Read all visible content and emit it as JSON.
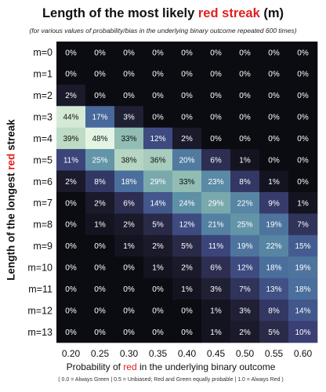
{
  "chart_data": {
    "type": "heatmap",
    "title": {
      "prefix": "Length of the most likely ",
      "highlight": "red streak",
      "suffix": " (m)"
    },
    "subtitle": "(for various values of probability/bias in the underlying binary outcome repeated 600 times)",
    "xlabel": {
      "prefix": "Probability of ",
      "highlight": "red",
      "suffix": " in the underlying binary outcome"
    },
    "xnote": "( 0.0 = Always Green | 0.5 = Unbiased; Red and Green equally probable | 1.0 = Always Red )",
    "ylabel": {
      "prefix": "Length of the longest ",
      "highlight": "red",
      "suffix": " streak"
    },
    "x": [
      "0.20",
      "0.25",
      "0.30",
      "0.35",
      "0.40",
      "0.45",
      "0.50",
      "0.55",
      "0.60"
    ],
    "y": [
      "m=0",
      "m=1",
      "m=2",
      "m=3",
      "m=4",
      "m=5",
      "m=6",
      "m=7",
      "m=8",
      "m=9",
      "m=10",
      "m=11",
      "m=12",
      "m=13"
    ],
    "values": [
      [
        0,
        0,
        0,
        0,
        0,
        0,
        0,
        0,
        0
      ],
      [
        0,
        0,
        0,
        0,
        0,
        0,
        0,
        0,
        0
      ],
      [
        2,
        0,
        0,
        0,
        0,
        0,
        0,
        0,
        0
      ],
      [
        44,
        17,
        3,
        0,
        0,
        0,
        0,
        0,
        0
      ],
      [
        39,
        48,
        33,
        12,
        2,
        0,
        0,
        0,
        0
      ],
      [
        11,
        25,
        38,
        36,
        20,
        6,
        1,
        0,
        0
      ],
      [
        2,
        8,
        18,
        29,
        33,
        23,
        8,
        1,
        0
      ],
      [
        0,
        2,
        6,
        14,
        24,
        29,
        22,
        9,
        1
      ],
      [
        0,
        1,
        2,
        5,
        12,
        21,
        25,
        19,
        7
      ],
      [
        0,
        0,
        1,
        2,
        5,
        11,
        19,
        22,
        15
      ],
      [
        0,
        0,
        0,
        1,
        2,
        6,
        12,
        18,
        19
      ],
      [
        0,
        0,
        0,
        0,
        1,
        3,
        7,
        13,
        18
      ],
      [
        0,
        0,
        0,
        0,
        0,
        1,
        3,
        8,
        14
      ],
      [
        0,
        0,
        0,
        0,
        0,
        1,
        2,
        5,
        10
      ]
    ],
    "value_suffix": "%",
    "colormap": [
      "#0b0b12",
      "#262640",
      "#3a3f74",
      "#47679a",
      "#5d8fa6",
      "#86b6b0",
      "#c2dec8",
      "#e4f4e4"
    ],
    "vmax": 48,
    "grid": false,
    "legend": "none"
  },
  "colors": {
    "highlight": "#e01f1f",
    "light_text": "#ffffff",
    "dark_text": "#111111"
  }
}
